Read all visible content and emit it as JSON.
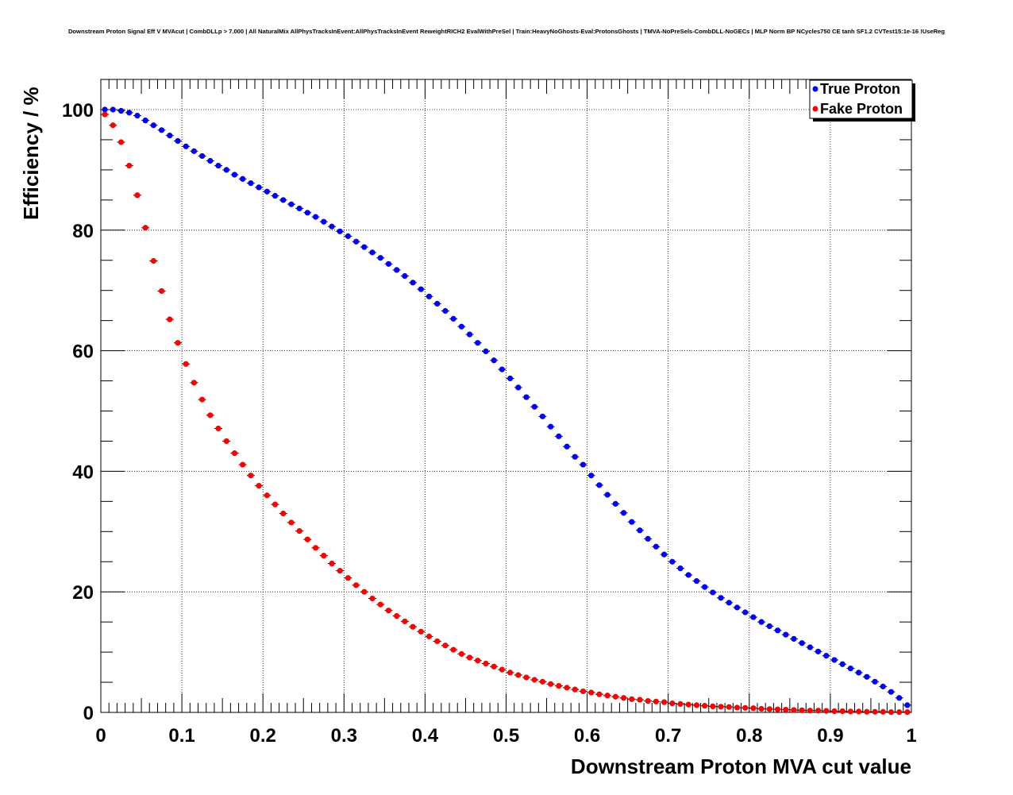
{
  "chart_data": {
    "type": "scatter",
    "title": "Downstream Proton Signal Eff V MVAcut | CombDLLp > 7.000 | All NaturalMix AllPhysTracksInEvent:AllPhysTracksInEvent ReweightRICH2 EvalWithPreSel | Train:HeavyNoGhosts-Eval:ProtonsGhosts | TMVA-NoPreSels-CombDLL-NoGECs | MLP Norm BP NCycles750 CE tanh SF1.2 CVTest15:1e-16 !UseReg",
    "xlabel": "Downstream Proton MVA cut value",
    "ylabel": "Efficiency / %",
    "xlim": [
      0,
      1
    ],
    "ylim": [
      0,
      105
    ],
    "xticks": [
      "0",
      "0.1",
      "0.2",
      "0.3",
      "0.4",
      "0.5",
      "0.6",
      "0.7",
      "0.8",
      "0.9",
      "1"
    ],
    "yticks": [
      "0",
      "20",
      "40",
      "60",
      "80",
      "100"
    ],
    "grid": true,
    "legend_placement": "top-right",
    "x_start": 0.005,
    "x_step": 0.01,
    "series": [
      {
        "name": "True Proton",
        "color": "#0000ff",
        "values": [
          100,
          100,
          99.8,
          99.5,
          99,
          98.2,
          97.4,
          96.6,
          95.7,
          94.8,
          93.9,
          93.1,
          92.3,
          91.5,
          90.7,
          90,
          89.2,
          88.5,
          87.8,
          87.1,
          86.4,
          85.7,
          85,
          84.3,
          83.6,
          82.9,
          82.2,
          81.4,
          80.6,
          79.8,
          79,
          78.1,
          77.2,
          76.3,
          75.4,
          74.4,
          73.4,
          72.4,
          71.3,
          70.2,
          69,
          67.8,
          66.6,
          65.3,
          64,
          62.7,
          61.3,
          59.9,
          58.4,
          56.9,
          55.4,
          53.9,
          52.3,
          50.7,
          49.1,
          47.4,
          45.8,
          44.1,
          42.4,
          41.1,
          39.3,
          37.7,
          36.1,
          34.6,
          33.1,
          31.6,
          30.2,
          28.8,
          27.5,
          26.2,
          25,
          23.9,
          22.8,
          21.8,
          20.8,
          19.9,
          19,
          18.2,
          17.4,
          16.6,
          15.8,
          15,
          14.3,
          13.6,
          12.9,
          12.2,
          11.5,
          10.8,
          10.1,
          9.4,
          8.7,
          8,
          7.3,
          6.6,
          5.9,
          5.1,
          4.3,
          3.4,
          2.4,
          1.2
        ]
      },
      {
        "name": "Fake Proton",
        "color": "#ff0000",
        "values": [
          99.2,
          97.4,
          94.6,
          90.7,
          85.8,
          80.4,
          74.9,
          69.9,
          65.2,
          61.3,
          57.8,
          54.7,
          51.9,
          49.3,
          47.1,
          45,
          43,
          41.1,
          39.3,
          37.6,
          36,
          34.5,
          33,
          31.5,
          30.1,
          28.7,
          27.3,
          26,
          24.7,
          23.5,
          22.3,
          21.1,
          20,
          18.9,
          17.9,
          16.9,
          16,
          15.1,
          14.2,
          13.4,
          12.6,
          11.8,
          11.1,
          10.4,
          9.7,
          9.1,
          8.6,
          8.1,
          7.6,
          7.1,
          6.6,
          6.2,
          5.8,
          5.4,
          5.1,
          4.7,
          4.4,
          4.1,
          3.8,
          3.5,
          3.3,
          3,
          2.8,
          2.6,
          2.4,
          2.2,
          2.1,
          1.9,
          1.8,
          1.7,
          1.5,
          1.4,
          1.3,
          1.2,
          1.1,
          1,
          0.95,
          0.9,
          0.8,
          0.75,
          0.7,
          0.6,
          0.55,
          0.5,
          0.45,
          0.4,
          0.35,
          0.3,
          0.3,
          0.25,
          0.2,
          0.2,
          0.15,
          0.15,
          0.1,
          0.1,
          0.1,
          0.05,
          0.05,
          0.05
        ]
      }
    ]
  }
}
